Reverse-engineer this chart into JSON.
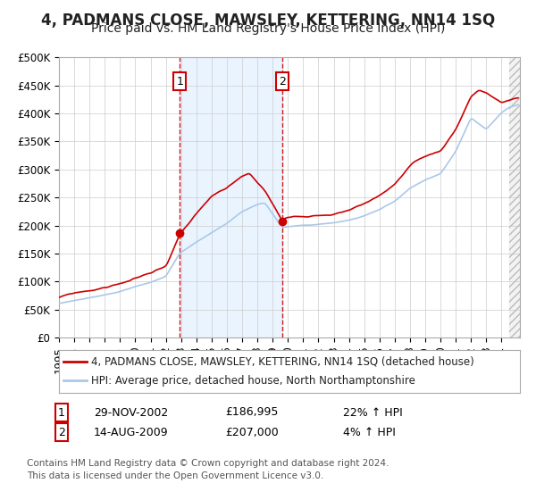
{
  "title": "4, PADMANS CLOSE, MAWSLEY, KETTERING, NN14 1SQ",
  "subtitle": "Price paid vs. HM Land Registry's House Price Index (HPI)",
  "ylabel_ticks": [
    "£0",
    "£50K",
    "£100K",
    "£150K",
    "£200K",
    "£250K",
    "£300K",
    "£350K",
    "£400K",
    "£450K",
    "£500K"
  ],
  "ytick_vals": [
    0,
    50000,
    100000,
    150000,
    200000,
    250000,
    300000,
    350000,
    400000,
    450000,
    500000
  ],
  "ylim": [
    0,
    500000
  ],
  "xlim_start": 1995.0,
  "xlim_end": 2025.2,
  "sale1_date": 2002.91,
  "sale1_label": "1",
  "sale1_price": 186995,
  "sale1_text": "29-NOV-2002",
  "sale1_pct": "22% ↑ HPI",
  "sale2_date": 2009.62,
  "sale2_label": "2",
  "sale2_price": 207000,
  "sale2_text": "14-AUG-2009",
  "sale2_pct": "4% ↑ HPI",
  "hpi_line_color": "#aac8e8",
  "price_line_color": "#cc0000",
  "shade_color": "#ddeeff",
  "legend_label_red": "4, PADMANS CLOSE, MAWSLEY, KETTERING, NN14 1SQ (detached house)",
  "legend_label_blue": "HPI: Average price, detached house, North Northamptonshire",
  "footnote1": "Contains HM Land Registry data © Crown copyright and database right 2024.",
  "footnote2": "This data is licensed under the Open Government Licence v3.0.",
  "title_fontsize": 12,
  "subtitle_fontsize": 10,
  "axis_fontsize": 8.5,
  "background_color": "#ffffff"
}
